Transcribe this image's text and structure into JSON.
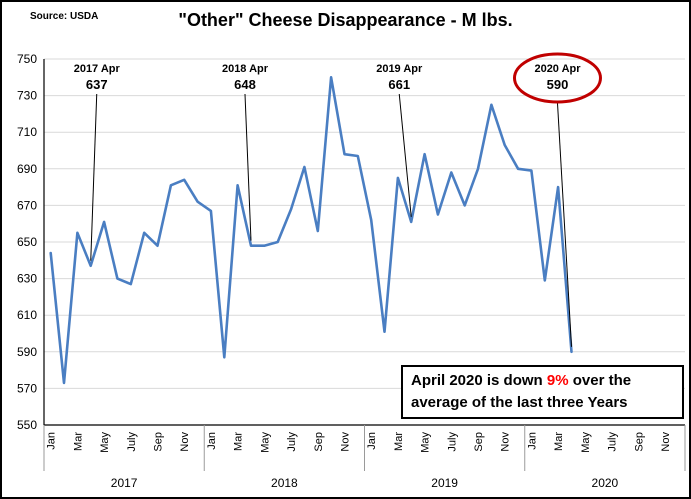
{
  "chart_data": {
    "type": "line",
    "title": "\"Other\" Cheese Disappearance - M lbs.",
    "source": "Source: USDA",
    "ylabel": "",
    "xlabel": "",
    "ylim": [
      550,
      750
    ],
    "ytick_step": 20,
    "grid": "horizontal",
    "legend": "none",
    "years": [
      "2017",
      "2018",
      "2019",
      "2020"
    ],
    "month_ticks": [
      "Jan",
      "Mar",
      "May",
      "July",
      "Sep",
      "Nov"
    ],
    "series": [
      {
        "name": "Other cheese disappearance (M lbs)",
        "start": "2017-01",
        "values": [
          644,
          573,
          655,
          637,
          661,
          630,
          627,
          655,
          648,
          681,
          684,
          672,
          667,
          587,
          681,
          648,
          648,
          650,
          668,
          691,
          656,
          740,
          698,
          697,
          662,
          601,
          685,
          661,
          698,
          665,
          688,
          670,
          690,
          725,
          703,
          690,
          689,
          629,
          680,
          590
        ]
      }
    ],
    "annotations": [
      {
        "label": "2017 Apr",
        "value": 637,
        "month_index": 3,
        "circled": false
      },
      {
        "label": "2018 Apr",
        "value": 648,
        "month_index": 15,
        "circled": false
      },
      {
        "label": "2019 Apr",
        "value": 661,
        "month_index": 27,
        "circled": false
      },
      {
        "label": "2020 Apr",
        "value": 590,
        "month_index": 39,
        "circled": true
      }
    ]
  },
  "note": {
    "line1_pre": "April 2020 is down ",
    "highlight": "9%",
    "line1_post": " over the",
    "line2": "average of the last three Years"
  },
  "colors": {
    "line": "#4a7ec2",
    "annotation_circle": "#c00000",
    "note_highlight": "#ff0000",
    "gridline": "#d9d9d9"
  }
}
